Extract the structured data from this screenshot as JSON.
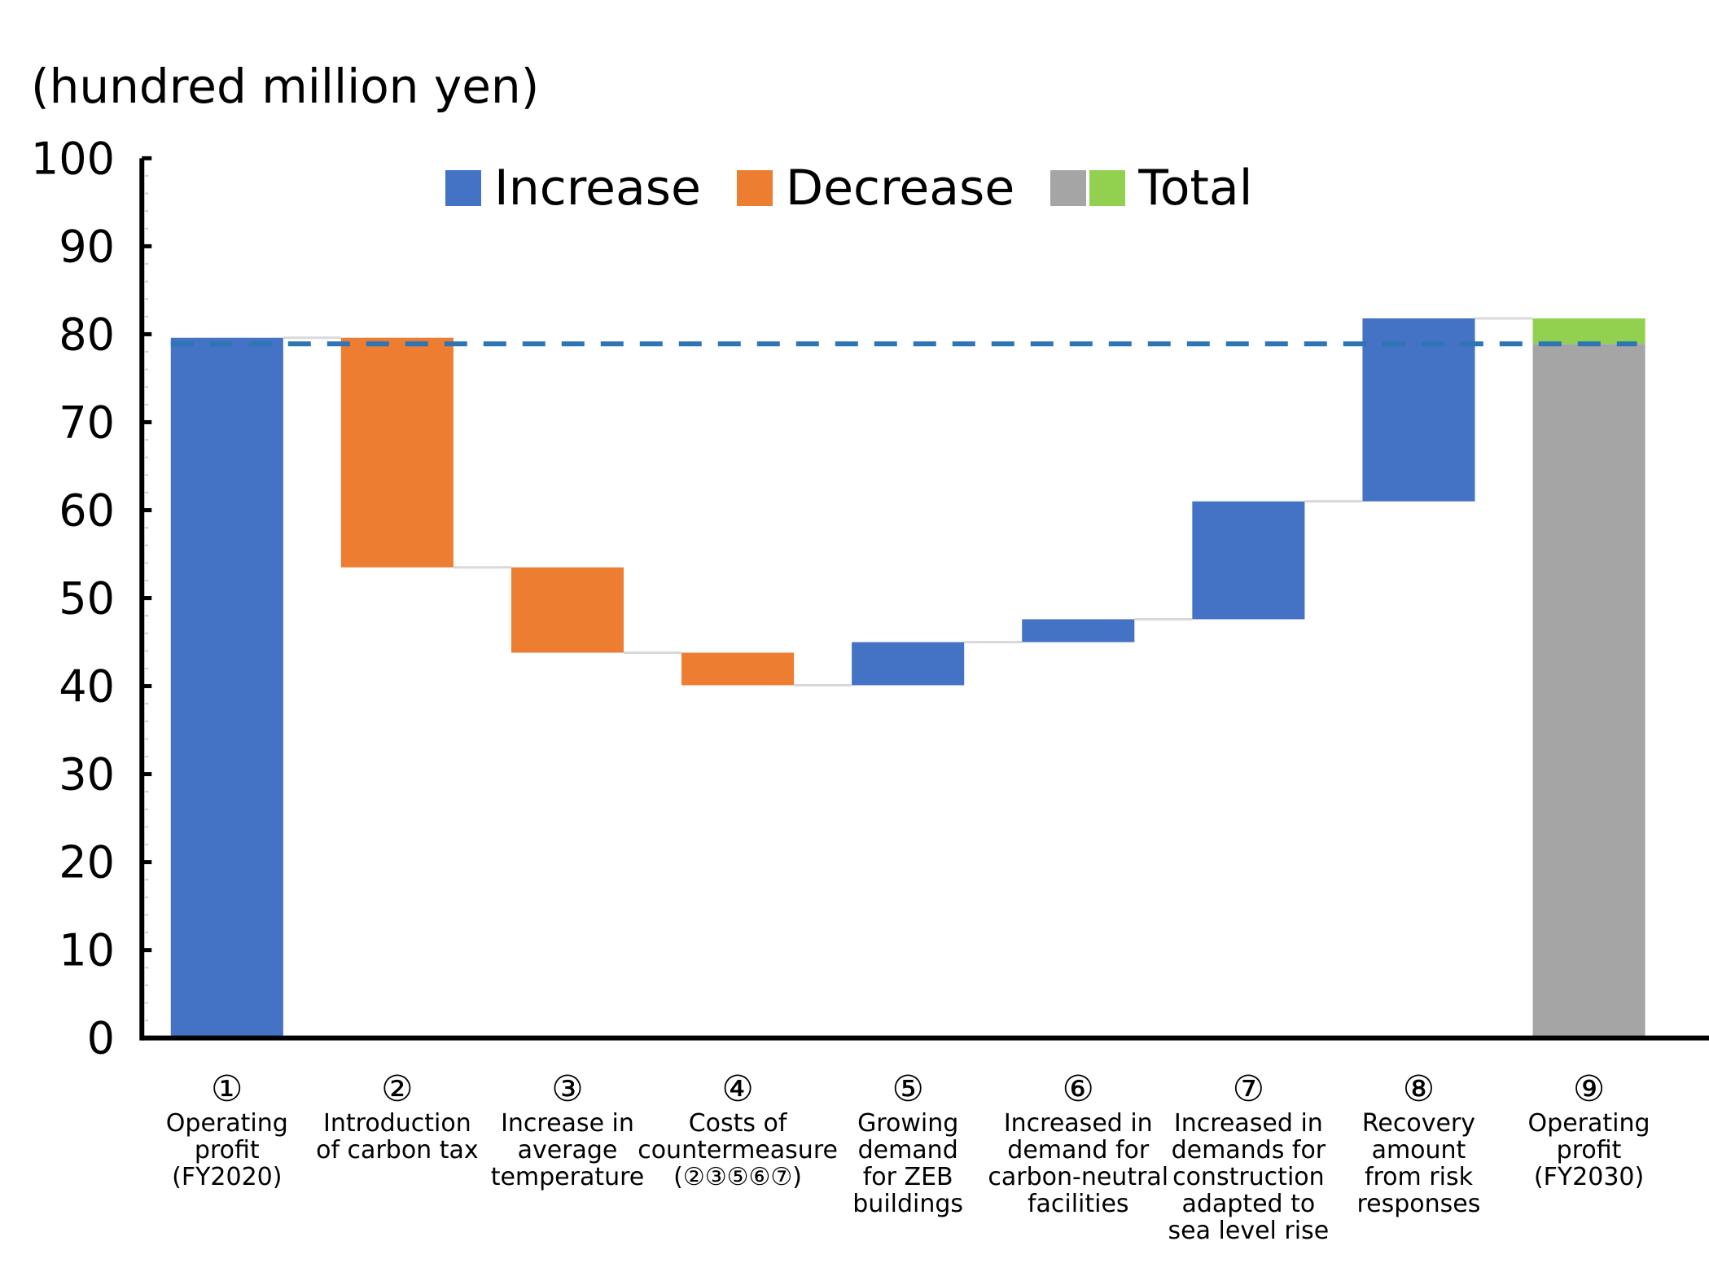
{
  "chart_data": {
    "type": "bar",
    "subtype": "waterfall",
    "title": "",
    "unit_label": "(hundred million yen)",
    "ylabel": "(hundred million yen)",
    "xlabel": "",
    "ylim": [
      0,
      100
    ],
    "yticks": [
      0,
      10,
      20,
      30,
      40,
      50,
      60,
      70,
      80,
      90,
      100
    ],
    "grid": false,
    "legend_position": "top-center",
    "legend": [
      {
        "label": "Increase",
        "colors": [
          "#4472C4"
        ]
      },
      {
        "label": "Decrease",
        "colors": [
          "#ED7D31"
        ]
      },
      {
        "label": "Total",
        "colors": [
          "#A5A5A5",
          "#92D050"
        ]
      }
    ],
    "colors": {
      "increase": "#4472C4",
      "decrease": "#ED7D31",
      "total_base": "#A5A5A5",
      "total_gain": "#92D050",
      "reference_line": "#2E75B6",
      "connector": "#D9D9D9"
    },
    "reference_line": {
      "value": 78.9,
      "style": "dashed"
    },
    "categories": [
      {
        "num": "①",
        "lines": [
          "Operating",
          "profit",
          "(FY2020)"
        ]
      },
      {
        "num": "②",
        "lines": [
          "Introduction",
          "of carbon tax"
        ]
      },
      {
        "num": "③",
        "lines": [
          "Increase in",
          "average",
          "temperature"
        ]
      },
      {
        "num": "④",
        "lines": [
          "Costs of",
          "countermeasure",
          "(②③⑤⑥⑦)"
        ]
      },
      {
        "num": "⑤",
        "lines": [
          "Growing",
          "demand",
          "for ZEB",
          "buildings"
        ]
      },
      {
        "num": "⑥",
        "lines": [
          "Increased in",
          "demand for",
          "carbon-neutral",
          "facilities"
        ]
      },
      {
        "num": "⑦",
        "lines": [
          "Increased in",
          "demands for",
          "construction",
          "adapted to",
          "sea level rise"
        ]
      },
      {
        "num": "⑧",
        "lines": [
          "Recovery",
          "amount",
          "from risk",
          "responses"
        ]
      },
      {
        "num": "⑨",
        "lines": [
          "Operating",
          "profit",
          "(FY2030)"
        ]
      }
    ],
    "bars": [
      {
        "kind": "total",
        "start": 0,
        "end": 79.6
      },
      {
        "kind": "decrease",
        "start": 79.6,
        "end": 53.5,
        "value": -26.1
      },
      {
        "kind": "decrease",
        "start": 53.5,
        "end": 43.8,
        "value": -9.7
      },
      {
        "kind": "decrease",
        "start": 43.8,
        "end": 40.1,
        "value": -3.7
      },
      {
        "kind": "increase",
        "start": 40.1,
        "end": 45.0,
        "value": 4.9
      },
      {
        "kind": "increase",
        "start": 45.0,
        "end": 47.6,
        "value": 2.6
      },
      {
        "kind": "increase",
        "start": 47.6,
        "end": 61.0,
        "value": 13.4
      },
      {
        "kind": "increase",
        "start": 61.0,
        "end": 81.8,
        "value": 20.8
      },
      {
        "kind": "final",
        "start": 0,
        "end": 81.8,
        "base_portion": 78.9
      }
    ]
  }
}
